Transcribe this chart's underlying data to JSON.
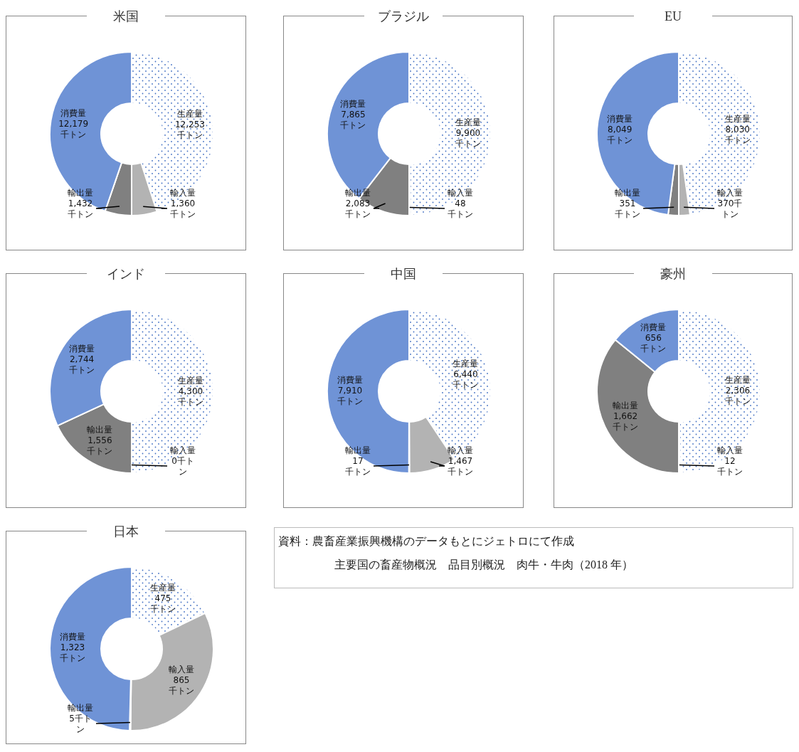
{
  "chart_data": [
    {
      "type": "donut",
      "title": "米国",
      "categories": [
        "生産量",
        "輸入量",
        "輸出量",
        "消費量"
      ],
      "values": [
        12253,
        1360,
        1432,
        12179
      ],
      "colors": [
        "#ffffff",
        "#b3b3b3",
        "#808080",
        "#6f93d6"
      ],
      "value_labels": [
        "12,253\n千トン",
        "1,360\n千トン",
        "1,432\n千トン",
        "12,179\n千トン"
      ]
    },
    {
      "type": "donut",
      "title": "ブラジル",
      "categories": [
        "生産量",
        "輸入量",
        "輸出量",
        "消費量"
      ],
      "values": [
        9900,
        48,
        2083,
        7865
      ],
      "colors": [
        "#ffffff",
        "#b3b3b3",
        "#808080",
        "#6f93d6"
      ],
      "value_labels": [
        "9,900\n千トン",
        "48\n千トン",
        "2,083\n千トン",
        "7,865\n千トン"
      ]
    },
    {
      "type": "donut",
      "title": "EU",
      "categories": [
        "生産量",
        "輸入量",
        "輸出量",
        "消費量"
      ],
      "values": [
        8030,
        370,
        351,
        8049
      ],
      "colors": [
        "#ffffff",
        "#b3b3b3",
        "#808080",
        "#6f93d6"
      ],
      "value_labels": [
        "8,030\n千トン",
        "370千トン",
        "351\n千トン",
        "8,049\n千トン"
      ]
    },
    {
      "type": "donut",
      "title": "インド",
      "categories": [
        "生産量",
        "輸入量",
        "輸出量",
        "消費量"
      ],
      "values": [
        4300,
        0,
        1556,
        2744
      ],
      "colors": [
        "#ffffff",
        "#b3b3b3",
        "#808080",
        "#6f93d6"
      ],
      "value_labels": [
        "4,300\n千トン",
        "0千トン",
        "1,556\n千トン",
        "2,744\n千トン"
      ]
    },
    {
      "type": "donut",
      "title": "中国",
      "categories": [
        "生産量",
        "輸入量",
        "輸出量",
        "消費量"
      ],
      "values": [
        6440,
        1467,
        17,
        7910
      ],
      "colors": [
        "#ffffff",
        "#b3b3b3",
        "#808080",
        "#6f93d6"
      ],
      "value_labels": [
        "6,440\n千トン",
        "1,467\n千トン",
        "17\n千トン",
        "7,910\n千トン"
      ]
    },
    {
      "type": "donut",
      "title": "豪州",
      "categories": [
        "生産量",
        "輸入量",
        "輸出量",
        "消費量"
      ],
      "values": [
        2306,
        12,
        1662,
        656
      ],
      "colors": [
        "#ffffff",
        "#b3b3b3",
        "#808080",
        "#6f93d6"
      ],
      "value_labels": [
        "2,306\n千トン",
        "12\n千トン",
        "1,662\n千トン",
        "656\n千トン"
      ]
    },
    {
      "type": "donut",
      "title": "日本",
      "categories": [
        "生産量",
        "輸入量",
        "輸出量",
        "消費量"
      ],
      "values": [
        475,
        865,
        5,
        1323
      ],
      "colors": [
        "#ffffff",
        "#b3b3b3",
        "#808080",
        "#6f93d6"
      ],
      "value_labels": [
        "475\n千トン",
        "865\n千トン",
        "5千トン",
        "1,323\n千トン"
      ]
    },
    {
      "type": "other",
      "annotations": [
        "資料：農畜産業振興機構のデータもとにジェトロにて作成",
        "主要国の畜産物概況　品目別概況　肉牛・牛肉（2018 年）"
      ]
    }
  ]
}
